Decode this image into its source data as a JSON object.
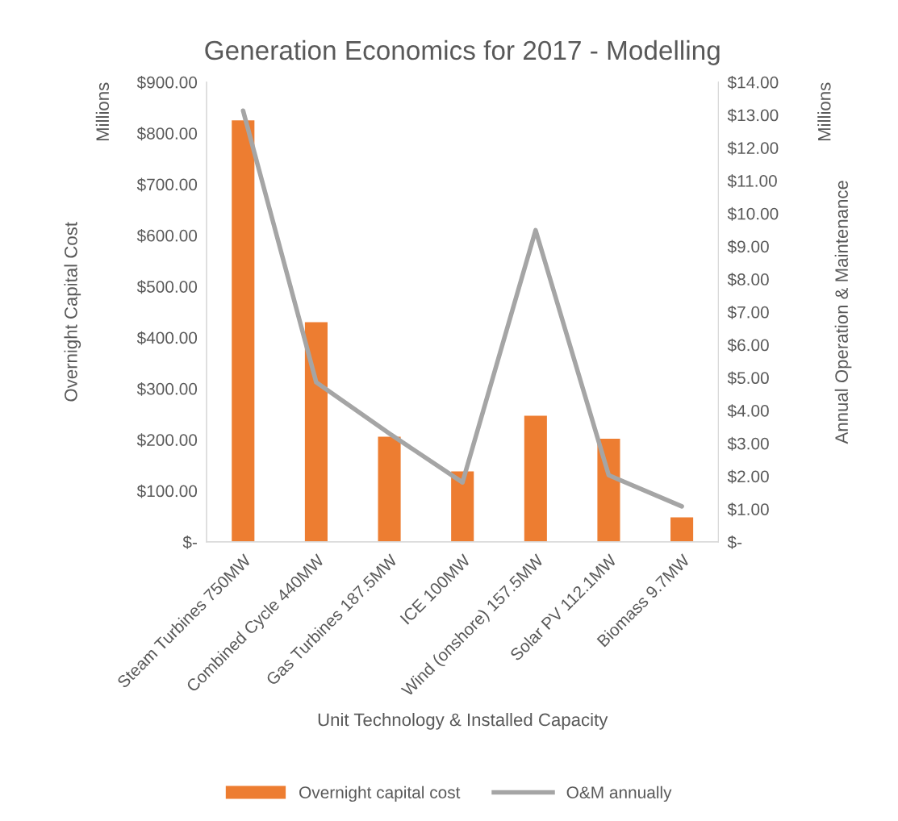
{
  "chart_data": {
    "type": "bar",
    "title": "Generation Economics for 2017 - Modelling",
    "xlabel": "Unit Technology & Installed Capacity",
    "ylabel": "Overnight Capital Cost",
    "y2label": "Annual Operation & Maintenance",
    "categories": [
      "Steam Turbines 750MW",
      "Combined Cycle 440MW",
      "Gas Turbines 187.5MW",
      "ICE 100MW",
      "Wind (onshore) 157.5MW",
      "Solar PV 112.1MW",
      "Biomass 9.7MW"
    ],
    "series": [
      {
        "name": "Overnight capital cost",
        "color": "#ed7d31",
        "values": [
          825,
          430,
          206,
          138,
          247,
          202,
          48
        ]
      },
      {
        "name": "O&M annually",
        "type": "line",
        "axis": "y2",
        "color": "#a5a5a5",
        "values": [
          13.13,
          4.86,
          3.3,
          1.81,
          9.49,
          2.03,
          1.08
        ]
      }
    ],
    "ylim": [
      0,
      900
    ],
    "yticks": [
      {
        "value": 0,
        "label": "$-"
      },
      {
        "value": 100,
        "label": "$100.00"
      },
      {
        "value": 200,
        "label": "$200.00"
      },
      {
        "value": 300,
        "label": "$300.00"
      },
      {
        "value": 400,
        "label": "$400.00"
      },
      {
        "value": 500,
        "label": "$500.00"
      },
      {
        "value": 600,
        "label": "$600.00"
      },
      {
        "value": 700,
        "label": "$700.00"
      },
      {
        "value": 800,
        "label": "$800.00"
      },
      {
        "value": 900,
        "label": "$900.00"
      }
    ],
    "y2lim": [
      0,
      14
    ],
    "y2ticks": [
      {
        "value": 0,
        "label": "$-"
      },
      {
        "value": 1,
        "label": "$1.00"
      },
      {
        "value": 2,
        "label": "$2.00"
      },
      {
        "value": 3,
        "label": "$3.00"
      },
      {
        "value": 4,
        "label": "$4.00"
      },
      {
        "value": 5,
        "label": "$5.00"
      },
      {
        "value": 6,
        "label": "$6.00"
      },
      {
        "value": 7,
        "label": "$7.00"
      },
      {
        "value": 8,
        "label": "$8.00"
      },
      {
        "value": 9,
        "label": "$9.00"
      },
      {
        "value": 10,
        "label": "$10.00"
      },
      {
        "value": 11,
        "label": "$11.00"
      },
      {
        "value": 12,
        "label": "$12.00"
      },
      {
        "value": 13,
        "label": "$13.00"
      },
      {
        "value": 14,
        "label": "$14.00"
      }
    ],
    "annotations": [
      "Millions",
      "Millions"
    ],
    "grid": false,
    "legend": "bottom",
    "marker": "none",
    "line_style": "solid"
  }
}
